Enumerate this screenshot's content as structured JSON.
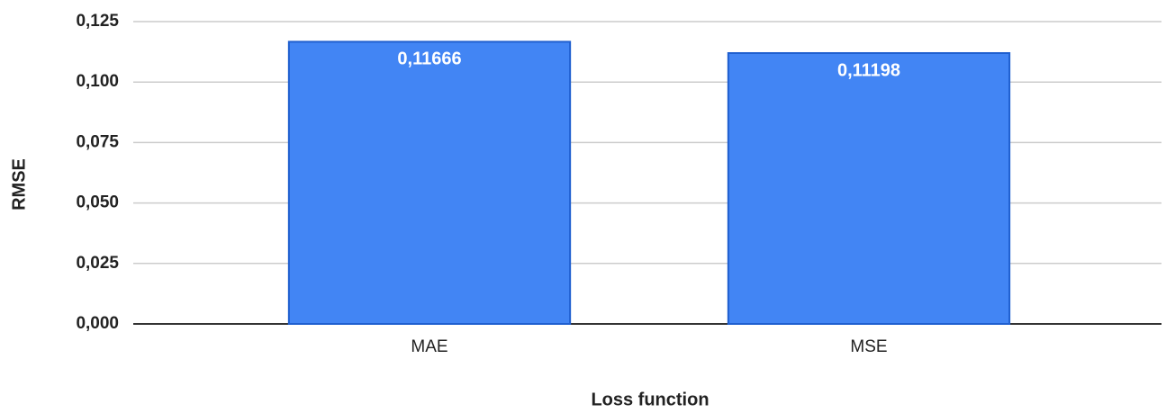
{
  "chart_data": {
    "type": "bar",
    "x_label": "Loss function",
    "y_label": "RMSE",
    "categories": [
      "MAE",
      "MSE"
    ],
    "values": [
      0.11666,
      0.11198
    ],
    "value_labels": [
      "0,11666",
      "0,11198"
    ],
    "color": "#4285f4",
    "ylim": [
      0,
      0.125
    ],
    "yticks": [
      {
        "value": 0,
        "label": "0,000"
      },
      {
        "value": 0.025,
        "label": "0,025"
      },
      {
        "value": 0.05,
        "label": "0,050"
      },
      {
        "value": 0.075,
        "label": "0,075"
      },
      {
        "value": 0.1,
        "label": "0,100"
      },
      {
        "value": 0.125,
        "label": "0,125"
      }
    ],
    "grid": true
  }
}
